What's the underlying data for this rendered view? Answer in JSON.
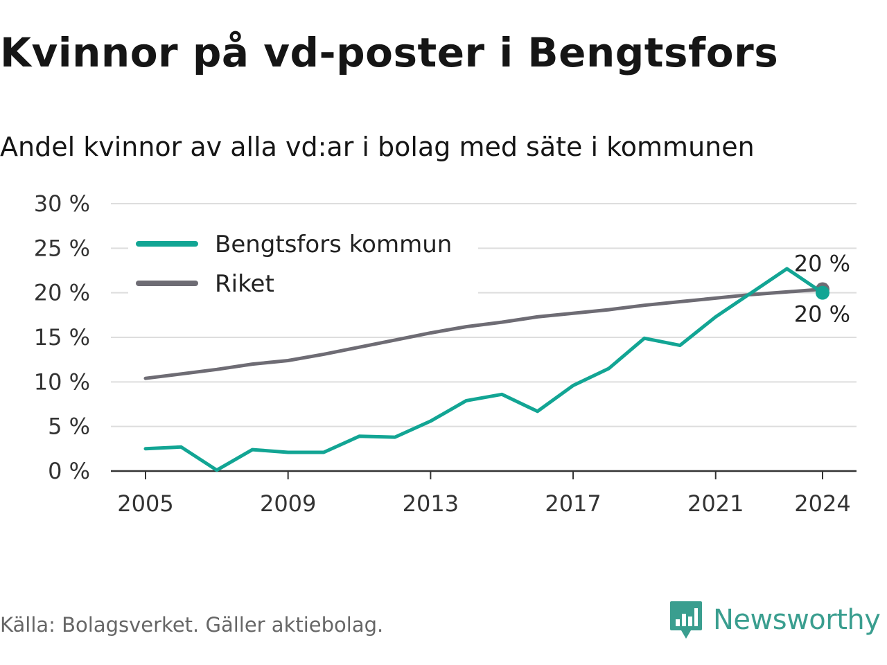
{
  "title": "Kvinnor på vd-poster i Bengtsfors",
  "subtitle": "Andel kvinnor av alla vd:ar i bolag med säte i kommunen",
  "source": "Källa: Bolagsverket. Gäller aktiebolag.",
  "brand": {
    "name": "Newsworthy",
    "icon": "newsworthy-logo-icon"
  },
  "colors": {
    "bengtsfors": "#12a594",
    "riket": "#6e6c74",
    "grid": "#dddddd",
    "axis": "#333333",
    "brand": "#3a9e8f"
  },
  "chart_data": {
    "type": "line",
    "x": [
      2005,
      2006,
      2007,
      2008,
      2009,
      2010,
      2011,
      2012,
      2013,
      2014,
      2015,
      2016,
      2017,
      2018,
      2019,
      2020,
      2021,
      2022,
      2023,
      2024
    ],
    "x_ticks": [
      "2005",
      "2009",
      "2013",
      "2017",
      "2021",
      "2024"
    ],
    "y_ticks": [
      "0 %",
      "5 %",
      "10 %",
      "15 %",
      "20 %",
      "25 %",
      "30 %"
    ],
    "ylim": [
      0,
      30
    ],
    "grid": true,
    "legend_position": "top-left",
    "series": [
      {
        "name": "Bengtsfors kommun",
        "color": "#12a594",
        "values": [
          2.5,
          2.7,
          0.1,
          2.4,
          2.1,
          2.1,
          3.9,
          3.8,
          5.6,
          7.9,
          8.6,
          6.7,
          9.6,
          11.5,
          14.9,
          14.1,
          17.3,
          20.0,
          22.7,
          20.0
        ],
        "end_label": "20 %"
      },
      {
        "name": "Riket",
        "color": "#6e6c74",
        "values": [
          10.4,
          10.9,
          11.4,
          12.0,
          12.4,
          13.1,
          13.9,
          14.7,
          15.5,
          16.2,
          16.7,
          17.3,
          17.7,
          18.1,
          18.6,
          19.0,
          19.4,
          19.8,
          20.1,
          20.4
        ],
        "end_label": "20 %"
      }
    ]
  }
}
